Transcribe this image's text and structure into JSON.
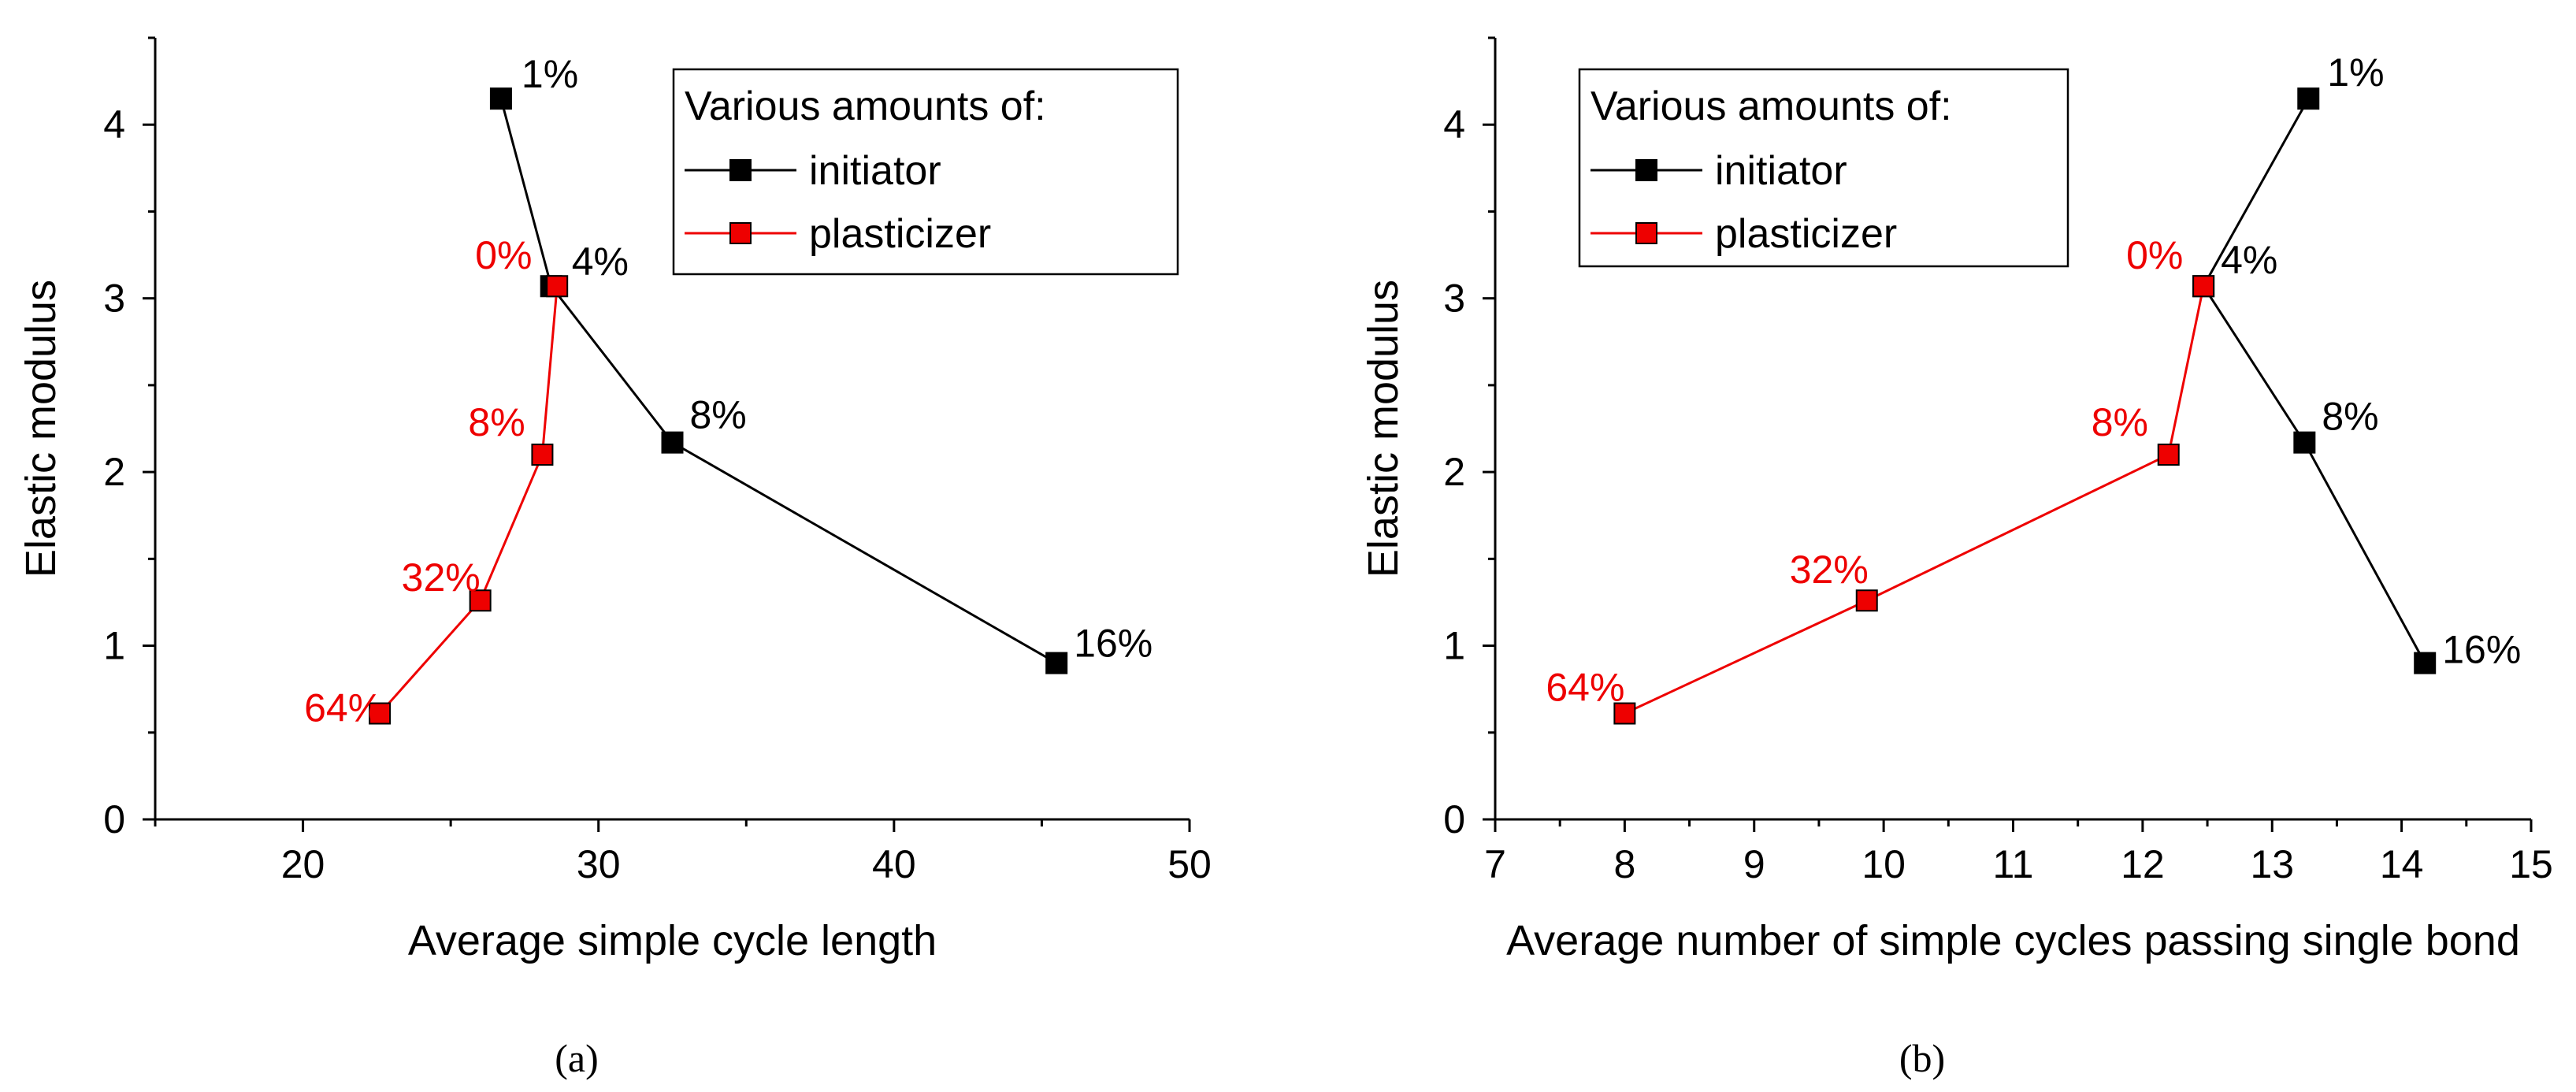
{
  "chart_data": [
    {
      "type": "line",
      "panel": "a",
      "caption": "(a)",
      "xlabel": "Average simple cycle length",
      "ylabel": "Elastic modulus",
      "xlim": [
        15,
        50
      ],
      "ylim": [
        0,
        4.5
      ],
      "xticks": [
        20,
        30,
        40,
        50
      ],
      "xtick_labels": [
        "20",
        "30",
        "40",
        "50"
      ],
      "yticks": [
        0,
        1,
        2,
        3,
        4
      ],
      "ytick_labels": [
        "0",
        "1",
        "2",
        "3",
        "4"
      ],
      "grid": false,
      "legend": {
        "title": "Various amounts of:",
        "placement": "top-right",
        "entries": [
          "initiator",
          "plasticizer"
        ]
      },
      "series": [
        {
          "name": "initiator",
          "color": "#000000",
          "x": [
            26.7,
            28.4,
            32.5,
            45.5
          ],
          "y": [
            4.15,
            3.07,
            2.17,
            0.9
          ],
          "labels": [
            "1%",
            "4%",
            "8%",
            "16%"
          ]
        },
        {
          "name": "plasticizer",
          "color": "#ee0000",
          "x": [
            22.6,
            26.0,
            28.1,
            28.6
          ],
          "y": [
            0.61,
            1.26,
            2.1,
            3.07
          ],
          "labels": [
            "64%",
            "32%",
            "8%",
            "0%"
          ]
        }
      ]
    },
    {
      "type": "line",
      "panel": "b",
      "caption": "(b)",
      "xlabel": "Average number of simple cycles passing single bond",
      "ylabel": "Elastic modulus",
      "xlim": [
        7,
        15
      ],
      "ylim": [
        0,
        4.5
      ],
      "xticks": [
        7,
        8,
        9,
        10,
        11,
        12,
        13,
        14,
        15
      ],
      "xtick_labels": [
        "7",
        "8",
        "9",
        "10",
        "11",
        "12",
        "13",
        "14",
        "15"
      ],
      "yticks": [
        0,
        1,
        2,
        3,
        4
      ],
      "ytick_labels": [
        "0",
        "1",
        "2",
        "3",
        "4"
      ],
      "grid": false,
      "legend": {
        "title": "Various amounts of:",
        "placement": "top-left",
        "entries": [
          "initiator",
          "plasticizer"
        ]
      },
      "series": [
        {
          "name": "initiator",
          "color": "#000000",
          "x": [
            13.28,
            12.47,
            13.25,
            14.18
          ],
          "y": [
            4.15,
            3.07,
            2.17,
            0.9
          ],
          "labels": [
            "1%",
            "4%",
            "8%",
            "16%"
          ]
        },
        {
          "name": "plasticizer",
          "color": "#ee0000",
          "x": [
            8.0,
            9.87,
            12.2,
            12.47
          ],
          "y": [
            0.61,
            1.26,
            2.1,
            3.07
          ],
          "labels": [
            "64%",
            "32%",
            "8%",
            "0%"
          ]
        }
      ]
    }
  ]
}
